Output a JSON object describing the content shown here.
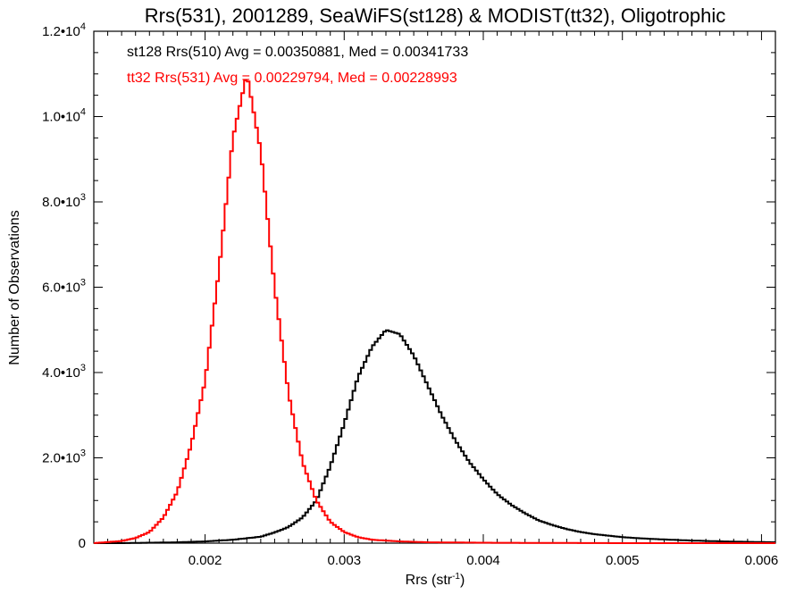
{
  "chart_data": {
    "type": "line",
    "title": "Rrs(531), 2001289, SeaWiFS(st128) & MODIST(tt32), Oligotrophic",
    "xlabel_base": "Rrs (str",
    "xlabel_exp": "-1",
    "xlabel_close": ")",
    "ylabel": "Number of Observations",
    "xlim": [
      0.0012,
      0.0061
    ],
    "ylim": [
      0,
      12000
    ],
    "x_ticks": [
      {
        "value": 0.002,
        "label": "0.002"
      },
      {
        "value": 0.003,
        "label": "0.003"
      },
      {
        "value": 0.004,
        "label": "0.004"
      },
      {
        "value": 0.005,
        "label": "0.005"
      },
      {
        "value": 0.006,
        "label": "0.006"
      }
    ],
    "y_ticks": [
      {
        "value": 0,
        "mant": "0",
        "exp": ""
      },
      {
        "value": 2000,
        "mant": "2.0•10",
        "exp": "3"
      },
      {
        "value": 4000,
        "mant": "4.0•10",
        "exp": "3"
      },
      {
        "value": 6000,
        "mant": "6.0•10",
        "exp": "3"
      },
      {
        "value": 8000,
        "mant": "8.0•10",
        "exp": "3"
      },
      {
        "value": 10000,
        "mant": "1.0•10",
        "exp": "4"
      },
      {
        "value": 12000,
        "mant": "1.2•10",
        "exp": "4"
      }
    ],
    "grid": false,
    "annotations": [
      {
        "text": "st128 Rrs(510) Avg = 0.00350881, Med = 0.00341733",
        "color": "#000000"
      },
      {
        "text": "tt32 Rrs(531) Avg = 0.00229794, Med = 0.00228993",
        "color": "#ff0000"
      }
    ],
    "series": [
      {
        "name": "st128",
        "color": "#000000",
        "x": [
          0.0012,
          0.0014,
          0.0016,
          0.0018,
          0.002,
          0.0022,
          0.0024,
          0.0025,
          0.0026,
          0.0027,
          0.0028,
          0.0029,
          0.003,
          0.0031,
          0.0032,
          0.0033,
          0.0034,
          0.0035,
          0.0036,
          0.0037,
          0.0038,
          0.0039,
          0.004,
          0.0041,
          0.0042,
          0.0043,
          0.0044,
          0.0045,
          0.0046,
          0.0047,
          0.0048,
          0.005,
          0.0052,
          0.0055,
          0.0058,
          0.0061
        ],
        "y": [
          0,
          0,
          10,
          20,
          40,
          80,
          150,
          250,
          380,
          600,
          1000,
          1800,
          2800,
          3900,
          4600,
          5000,
          4900,
          4400,
          3700,
          3000,
          2400,
          1900,
          1500,
          1150,
          900,
          700,
          530,
          420,
          330,
          260,
          210,
          140,
          100,
          60,
          35,
          20
        ]
      },
      {
        "name": "tt32",
        "color": "#ff0000",
        "x": [
          0.0012,
          0.0014,
          0.0015,
          0.0016,
          0.0017,
          0.0018,
          0.0019,
          0.002,
          0.0021,
          0.0022,
          0.0023,
          0.0024,
          0.0025,
          0.0026,
          0.0027,
          0.0028,
          0.0029,
          0.003,
          0.0031,
          0.0032,
          0.0034,
          0.0036,
          0.004,
          0.005,
          0.0061
        ],
        "y": [
          0,
          50,
          120,
          260,
          600,
          1200,
          2300,
          3800,
          6400,
          9500,
          11000,
          9200,
          6000,
          3500,
          1900,
          1000,
          500,
          260,
          140,
          80,
          40,
          20,
          10,
          0,
          0
        ]
      }
    ]
  }
}
